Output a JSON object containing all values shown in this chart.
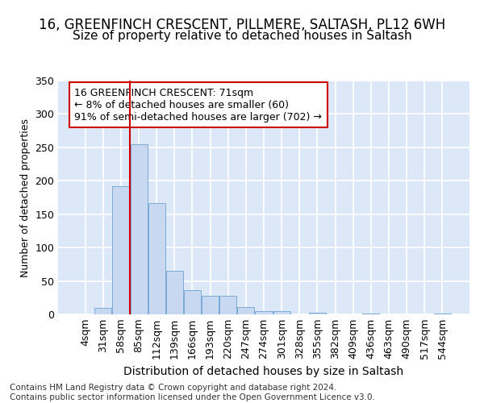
{
  "title1": "16, GREENFINCH CRESCENT, PILLMERE, SALTASH, PL12 6WH",
  "title2": "Size of property relative to detached houses in Saltash",
  "xlabel": "Distribution of detached houses by size in Saltash",
  "ylabel": "Number of detached properties",
  "bin_labels": [
    "4sqm",
    "31sqm",
    "58sqm",
    "85sqm",
    "112sqm",
    "139sqm",
    "166sqm",
    "193sqm",
    "220sqm",
    "247sqm",
    "274sqm",
    "301sqm",
    "328sqm",
    "355sqm",
    "382sqm",
    "409sqm",
    "436sqm",
    "463sqm",
    "490sqm",
    "517sqm",
    "544sqm"
  ],
  "bar_values": [
    0,
    10,
    192,
    255,
    167,
    65,
    36,
    28,
    28,
    11,
    5,
    5,
    0,
    3,
    0,
    0,
    1,
    0,
    0,
    0,
    1
  ],
  "bar_color": "#c8d8f0",
  "bar_edge_color": "#7aaad8",
  "property_line_bin": 3,
  "property_line_color": "#cc0000",
  "annotation_text": "16 GREENFINCH CRESCENT: 71sqm\n← 8% of detached houses are smaller (60)\n91% of semi-detached houses are larger (702) →",
  "annotation_box_facecolor": "white",
  "annotation_box_edgecolor": "#cc0000",
  "ylim": [
    0,
    350
  ],
  "yticks": [
    0,
    50,
    100,
    150,
    200,
    250,
    300,
    350
  ],
  "fig_bg_color": "#ffffff",
  "plot_bg_color": "#dce8f8",
  "grid_color": "#ffffff",
  "title1_fontsize": 12,
  "title2_fontsize": 11,
  "xlabel_fontsize": 10,
  "ylabel_fontsize": 9,
  "tick_fontsize": 9,
  "annotation_fontsize": 9,
  "footer_fontsize": 7.5,
  "footer_text": "Contains HM Land Registry data © Crown copyright and database right 2024.\nContains public sector information licensed under the Open Government Licence v3.0."
}
